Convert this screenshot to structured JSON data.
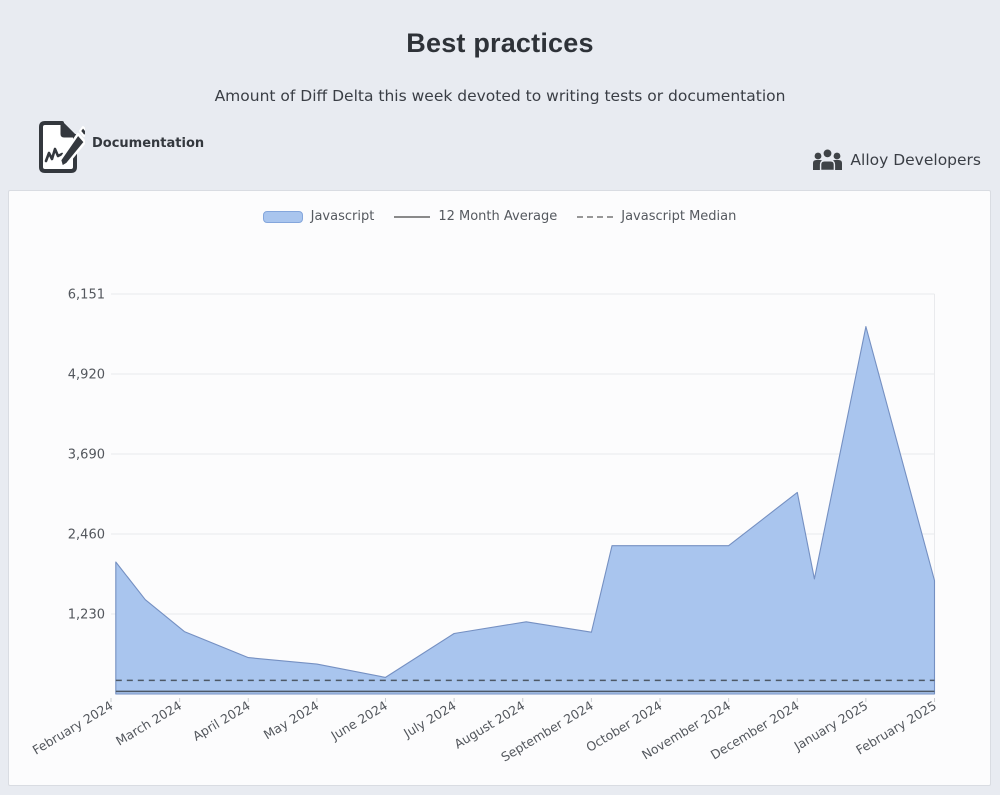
{
  "page": {
    "title": "Best practices",
    "subtitle": "Amount of Diff Delta this week devoted to writing tests or documentation"
  },
  "metric": {
    "icon": "document-pencil-icon",
    "label": "Documentation"
  },
  "team": {
    "icon": "people-icon",
    "label": "Alloy Developers"
  },
  "legend": [
    {
      "label": "Javascript",
      "type": "area"
    },
    {
      "label": "12 Month Average",
      "type": "line"
    },
    {
      "label": "Javascript Median",
      "type": "dashed"
    }
  ],
  "chart_data": {
    "type": "area",
    "title": "",
    "xlabel": "",
    "ylabel": "",
    "x_categories": [
      "February 2024",
      "March 2024",
      "April 2024",
      "May 2024",
      "June 2024",
      "July 2024",
      "August 2024",
      "September 2024",
      "October 2024",
      "November 2024",
      "December 2024",
      "January 2025",
      "February 2025"
    ],
    "series": [
      {
        "name": "Javascript",
        "note": "points are [month_offset_from_Feb2024, weekly_diff_delta]; weekly data, values estimated from pixels",
        "points": [
          [
            0.07,
            2030
          ],
          [
            0.5,
            1450
          ],
          [
            1.07,
            960
          ],
          [
            2,
            560
          ],
          [
            3,
            460
          ],
          [
            4,
            255
          ],
          [
            5,
            930
          ],
          [
            6.05,
            1110
          ],
          [
            7,
            950
          ],
          [
            7.3,
            2280
          ],
          [
            8,
            2280
          ],
          [
            9,
            2280
          ],
          [
            10,
            3100
          ],
          [
            10.25,
            1770
          ],
          [
            11,
            5650
          ],
          [
            12,
            1745
          ]
        ]
      }
    ],
    "reference_lines": [
      {
        "name": "12 Month Average",
        "value": 40,
        "style": "solid"
      },
      {
        "name": "Javascript Median",
        "value": 210,
        "style": "dashed"
      }
    ],
    "ylim": [
      0,
      6151
    ],
    "yticks": [
      1230,
      2460,
      3690,
      4920,
      6151
    ],
    "ytick_labels": [
      "1,230",
      "2,460",
      "3,690",
      "4,920",
      "6,151"
    ],
    "grid": true,
    "legend_position": "top-center",
    "colors": {
      "area_fill": "#a9c5ee",
      "area_stroke": "#7590c2",
      "reference_line": "#4d5866",
      "gridline": "#e9eaed",
      "tick": "#c9cbcf",
      "axis_text": "#53575d"
    }
  }
}
